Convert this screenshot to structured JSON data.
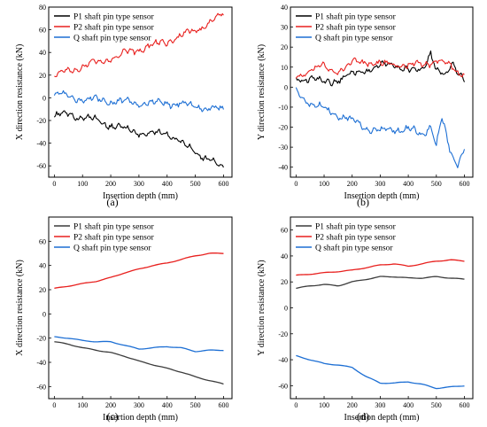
{
  "chart_data": [
    {
      "type": "line",
      "panel_label": "(a)",
      "xlabel": "Insertion depth (mm)",
      "ylabel": "X direction resistance (kN)",
      "xlim": [
        -20,
        630
      ],
      "ylim": [
        -70,
        80
      ],
      "xticks": [
        0,
        100,
        200,
        300,
        400,
        500,
        600
      ],
      "yticks": [
        -60,
        -40,
        -20,
        0,
        20,
        40,
        60,
        80
      ],
      "legend_position": "top-left",
      "style": "noisy",
      "series": [
        {
          "name": "P1 shaft pin type sensor",
          "color": "#000000",
          "x": [
            0,
            50,
            100,
            150,
            200,
            250,
            300,
            350,
            400,
            450,
            500,
            550,
            600
          ],
          "y": [
            -16,
            -15,
            -17,
            -20,
            -24,
            -28,
            -30,
            -33,
            -30,
            -40,
            -47,
            -55,
            -63
          ]
        },
        {
          "name": "P2 shaft pin type sensor",
          "color": "#e8201e",
          "x": [
            0,
            50,
            100,
            150,
            200,
            250,
            300,
            350,
            400,
            450,
            500,
            550,
            600
          ],
          "y": [
            19,
            24,
            28,
            31,
            35,
            39,
            43,
            46,
            50,
            54,
            60,
            66,
            74
          ]
        },
        {
          "name": "Q shaft pin type sensor",
          "color": "#1d6fd4",
          "x": [
            0,
            50,
            100,
            150,
            200,
            250,
            300,
            350,
            400,
            450,
            500,
            550,
            600
          ],
          "y": [
            3,
            1,
            -1,
            -2,
            -3,
            -4,
            -4,
            -5,
            -4,
            -6,
            -7,
            -10,
            -11
          ]
        }
      ]
    },
    {
      "type": "line",
      "panel_label": "(b)",
      "xlabel": "Insertion depth (mm)",
      "ylabel": "Y direction resistance (kN)",
      "xlim": [
        -20,
        630
      ],
      "ylim": [
        -45,
        40
      ],
      "xticks": [
        0,
        100,
        200,
        300,
        400,
        500,
        600
      ],
      "yticks": [
        -40,
        -30,
        -20,
        -10,
        0,
        10,
        20,
        30,
        40
      ],
      "legend_position": "top-left",
      "style": "noisy",
      "series": [
        {
          "name": "P1 shaft pin type sensor",
          "color": "#000000",
          "x": [
            0,
            50,
            100,
            150,
            200,
            250,
            300,
            350,
            400,
            450,
            480,
            500,
            530,
            560,
            600
          ],
          "y": [
            3,
            5,
            2,
            4,
            6,
            9,
            10,
            12,
            8,
            9,
            18,
            8,
            5,
            12,
            4
          ]
        },
        {
          "name": "P2 shaft pin type sensor",
          "color": "#e8201e",
          "x": [
            0,
            50,
            100,
            150,
            200,
            250,
            300,
            350,
            400,
            450,
            500,
            550,
            600
          ],
          "y": [
            5,
            9,
            10,
            8,
            12,
            13,
            11,
            12,
            10,
            12,
            13,
            11,
            6
          ]
        },
        {
          "name": "Q shaft pin type sensor",
          "color": "#1d6fd4",
          "x": [
            0,
            50,
            100,
            150,
            200,
            250,
            300,
            350,
            400,
            450,
            480,
            500,
            520,
            550,
            575,
            600
          ],
          "y": [
            -2,
            -8,
            -11,
            -14,
            -17,
            -20,
            -22,
            -21,
            -21,
            -24,
            -19,
            -29,
            -16,
            -33,
            -38,
            -30
          ]
        }
      ]
    },
    {
      "type": "line",
      "panel_label": "(c)",
      "xlabel": "Insertion depth (mm)",
      "ylabel": "X direction resistance (kN)",
      "xlim": [
        -20,
        630
      ],
      "ylim": [
        -70,
        80
      ],
      "xticks": [
        0,
        100,
        200,
        300,
        400,
        500,
        600
      ],
      "yticks": [
        -60,
        -40,
        -20,
        0,
        20,
        40,
        60
      ],
      "legend_position": "top-left",
      "style": "smooth",
      "series": [
        {
          "name": "P1 shaft pin type sensor",
          "color": "#3c3c3c",
          "x": [
            0,
            50,
            100,
            150,
            200,
            250,
            300,
            350,
            400,
            450,
            500,
            550,
            600
          ],
          "y": [
            -23,
            -25,
            -28,
            -30,
            -32,
            -35,
            -39,
            -42,
            -45,
            -48,
            -52,
            -55,
            -58
          ]
        },
        {
          "name": "P2 shaft pin type sensor",
          "color": "#e8201e",
          "x": [
            0,
            50,
            100,
            150,
            200,
            250,
            300,
            350,
            400,
            450,
            500,
            550,
            600
          ],
          "y": [
            21,
            23,
            25,
            27,
            30,
            34,
            37,
            40,
            42,
            45,
            48,
            50,
            50
          ]
        },
        {
          "name": "Q shaft pin type sensor",
          "color": "#1d6fd4",
          "x": [
            0,
            50,
            100,
            150,
            200,
            250,
            300,
            350,
            400,
            450,
            500,
            550,
            600
          ],
          "y": [
            -19,
            -20,
            -22,
            -23,
            -23,
            -26,
            -29,
            -28,
            -27,
            -28,
            -31,
            -30,
            -30
          ]
        }
      ]
    },
    {
      "type": "line",
      "panel_label": "(d)",
      "xlabel": "Insertion depth (mm)",
      "ylabel": "Y direction resistance (kN)",
      "xlim": [
        -20,
        630
      ],
      "ylim": [
        -70,
        70
      ],
      "xticks": [
        0,
        100,
        200,
        300,
        400,
        500,
        600
      ],
      "yticks": [
        -60,
        -40,
        -20,
        0,
        20,
        40,
        60
      ],
      "legend_position": "top-left",
      "style": "smooth",
      "series": [
        {
          "name": "P1 shaft pin type sensor",
          "color": "#3c3c3c",
          "x": [
            0,
            50,
            100,
            150,
            200,
            250,
            300,
            350,
            400,
            450,
            500,
            550,
            600
          ],
          "y": [
            15,
            17,
            18,
            17,
            20,
            22,
            24,
            24,
            23,
            23,
            24,
            23,
            22
          ]
        },
        {
          "name": "P2 shaft pin type sensor",
          "color": "#e8201e",
          "x": [
            0,
            50,
            100,
            150,
            200,
            250,
            300,
            350,
            400,
            450,
            500,
            550,
            600
          ],
          "y": [
            25,
            26,
            27,
            28,
            29,
            31,
            33,
            34,
            32,
            34,
            36,
            37,
            36
          ]
        },
        {
          "name": "Q shaft pin type sensor",
          "color": "#1d6fd4",
          "x": [
            0,
            50,
            100,
            150,
            200,
            250,
            300,
            350,
            400,
            450,
            500,
            550,
            600
          ],
          "y": [
            -37,
            -40,
            -43,
            -44,
            -46,
            -53,
            -58,
            -58,
            -57,
            -59,
            -62,
            -61,
            -60
          ]
        }
      ]
    }
  ]
}
